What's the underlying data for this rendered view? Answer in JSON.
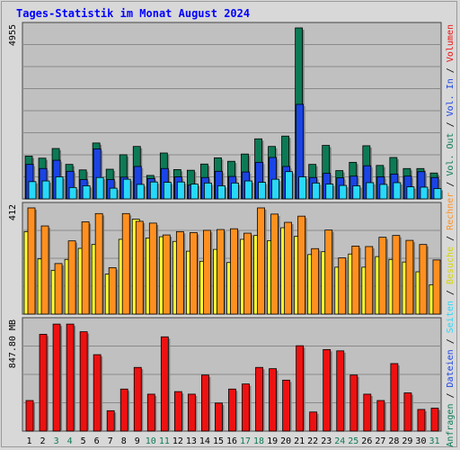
{
  "chart_data": {
    "type": "bar",
    "title": "Tages-Statistik im Monat August 2024",
    "x": [
      "1",
      "2",
      "3",
      "4",
      "5",
      "6",
      "7",
      "8",
      "9",
      "10",
      "11",
      "12",
      "13",
      "14",
      "15",
      "16",
      "17",
      "18",
      "19",
      "20",
      "21",
      "22",
      "23",
      "24",
      "25",
      "26",
      "27",
      "28",
      "29",
      "30",
      "31"
    ],
    "weekend_days": [
      "3",
      "4",
      "10",
      "11",
      "17",
      "18",
      "24",
      "25",
      "31"
    ],
    "grid": true,
    "panels": [
      {
        "max_label": "4955",
        "ymax": 4955,
        "legend": [
          {
            "name": "Anfragen",
            "color": "#0d7a56"
          },
          {
            "name": "Dateien",
            "color": "#1a44e6"
          },
          {
            "name": "Seiten",
            "color": "#28d8f8"
          }
        ],
        "series": [
          {
            "name": "Anfragen",
            "color": "#0d7a56",
            "values": [
              1240,
              1180,
              1460,
              1000,
              840,
              1620,
              860,
              1280,
              1520,
              680,
              1330,
              850,
              830,
              1010,
              1190,
              1090,
              1300,
              1740,
              1520,
              1820,
              4955,
              1000,
              1550,
              820,
              1060,
              1540,
              970,
              1200,
              880,
              880,
              750
            ]
          },
          {
            "name": "Dateien",
            "color": "#1a44e6",
            "values": [
              1000,
              880,
              1120,
              800,
              560,
              1450,
              560,
              630,
              940,
              590,
              880,
              640,
              400,
              620,
              800,
              650,
              780,
              1060,
              1200,
              940,
              2740,
              620,
              740,
              610,
              660,
              960,
              640,
              720,
              660,
              790,
              620
            ]
          },
          {
            "name": "Seiten",
            "color": "#28d8f8",
            "values": [
              500,
              520,
              640,
              330,
              380,
              620,
              310,
              570,
              420,
              490,
              480,
              490,
              430,
              460,
              380,
              460,
              520,
              480,
              570,
              790,
              640,
              460,
              430,
              390,
              380,
              470,
              420,
              470,
              350,
              340,
              300
            ]
          }
        ]
      },
      {
        "max_label": "412",
        "ymax": 412,
        "legend": [
          {
            "name": "Besuche",
            "color": "#ffff30"
          },
          {
            "name": "Rechner",
            "color": "#ff9020"
          }
        ],
        "series": [
          {
            "name": "Besuche",
            "color": "#ffff30",
            "values": [
              320,
              214,
              170,
              212,
              255,
              270,
              155,
              290,
              368,
              295,
              300,
              282,
              244,
              205,
              251,
              200,
              290,
              305,
              285,
              335,
              302,
              231,
              242,
              182,
              233,
              182,
              223,
              212,
              202,
              164,
              114
            ]
          },
          {
            "name": "Rechner",
            "color": "#ff9020",
            "values": [
              412,
              342,
              196,
              284,
              358,
              390,
              180,
              390,
              360,
              353,
              307,
              320,
              316,
              325,
              328,
              331,
              314,
              412,
              388,
              356,
              380,
              254,
              326,
              218,
              264,
              262,
              298,
              305,
              286,
              270,
              210
            ]
          }
        ]
      },
      {
        "max_label": "847.80 MB",
        "ymax": 847.8,
        "legend": [
          {
            "name": "Vol. In",
            "color": "#1a44e6"
          },
          {
            "name": "Vol. Out",
            "color": "#0d7a56"
          }
        ],
        "series": [
          {
            "name": "Volumen",
            "color": "#ee1111",
            "values": [
              240,
              760,
              840,
              840,
              780,
              600,
              160,
              330,
              500,
              290,
              740,
              310,
              290,
              440,
              220,
              330,
              370,
              500,
              490,
              400,
              670,
              150,
              640,
              630,
              440,
              290,
              240,
              530,
              300,
              170,
              180
            ]
          }
        ]
      }
    ]
  }
}
